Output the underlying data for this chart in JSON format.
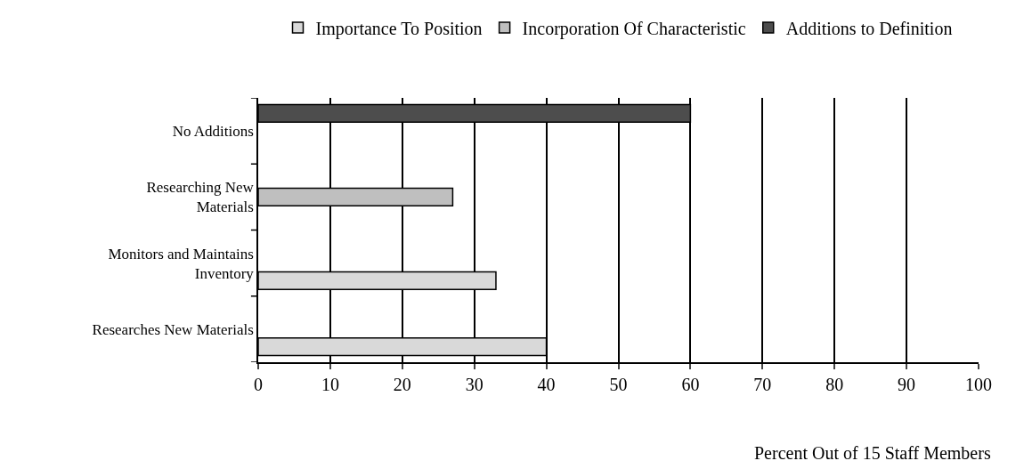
{
  "chart_data": {
    "type": "bar",
    "orientation": "horizontal",
    "xlabel": "Percent Out of 15 Staff Members",
    "categories": [
      "No Additions",
      "Researching New Materials",
      "Monitors and Maintains Inventory",
      "Researches New Materials"
    ],
    "series": [
      {
        "name": "Importance To Position",
        "color": "#d9d9d9",
        "values": [
          null,
          null,
          33,
          40
        ]
      },
      {
        "name": "Incorporation Of Characteristic",
        "color": "#bfbfbf",
        "values": [
          null,
          27,
          null,
          null
        ]
      },
      {
        "name": "Additions to Definition",
        "color": "#4d4d4d",
        "values": [
          60,
          null,
          null,
          null
        ]
      }
    ],
    "xlim": [
      0,
      100
    ],
    "xticks": [
      0,
      10,
      20,
      30,
      40,
      50,
      60,
      70,
      80,
      90,
      100
    ],
    "grid": "x",
    "legend": "top"
  }
}
